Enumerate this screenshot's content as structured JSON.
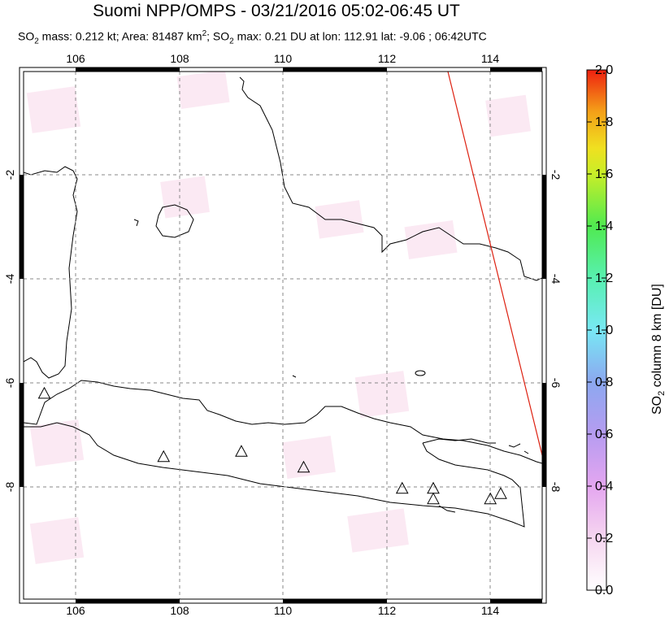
{
  "header": {
    "title": "Suomi NPP/OMPS - 03/21/2016 05:02-06:45 UT",
    "stats_prefix": "SO",
    "stats_sub": "2",
    "stats_mass": " mass: 0.212 kt; Area: 81487 km",
    "stats_sup": "2",
    "stats_rest1": "; SO",
    "stats_sub2": "2",
    "stats_rest2": " max: 0.21 DU at lon: 112.91 lat: -9.06 ; 06:42UTC"
  },
  "map": {
    "lon_range": [
      105,
      115
    ],
    "lat_range": [
      -10,
      0
    ],
    "lon_ticks": [
      "106",
      "108",
      "110",
      "112",
      "114"
    ],
    "lat_ticks": [
      "-2",
      "-4",
      "-6",
      "-8"
    ],
    "lat_ticks_right": [
      "-2",
      "-4",
      "-6",
      "-8"
    ],
    "grid": true,
    "volcanoes": [
      {
        "lon": 105.4,
        "lat": -6.1
      },
      {
        "lon": 107.7,
        "lat": -7.3
      },
      {
        "lon": 109.2,
        "lat": -7.2
      },
      {
        "lon": 110.4,
        "lat": -7.5
      },
      {
        "lon": 112.3,
        "lat": -7.9
      },
      {
        "lon": 112.9,
        "lat": -7.9
      },
      {
        "lon": 112.9,
        "lat": -8.1
      },
      {
        "lon": 114.0,
        "lat": -8.1
      },
      {
        "lon": 114.2,
        "lat": -8.0
      }
    ],
    "swath_edge": {
      "lon_start": 113.15,
      "lat_start": 0.0,
      "lon_end": 115.0,
      "lat_end": -7.4
    }
  },
  "colorbar": {
    "title_prefix": "SO",
    "title_sub": "2",
    "title_rest": " column 8 km [DU]",
    "min": 0.0,
    "max": 2.0,
    "labels": [
      "2.0",
      "1.8",
      "1.6",
      "1.4",
      "1.2",
      "1.0",
      "0.8",
      "0.6",
      "0.4",
      "0.2",
      "0.0"
    ]
  }
}
